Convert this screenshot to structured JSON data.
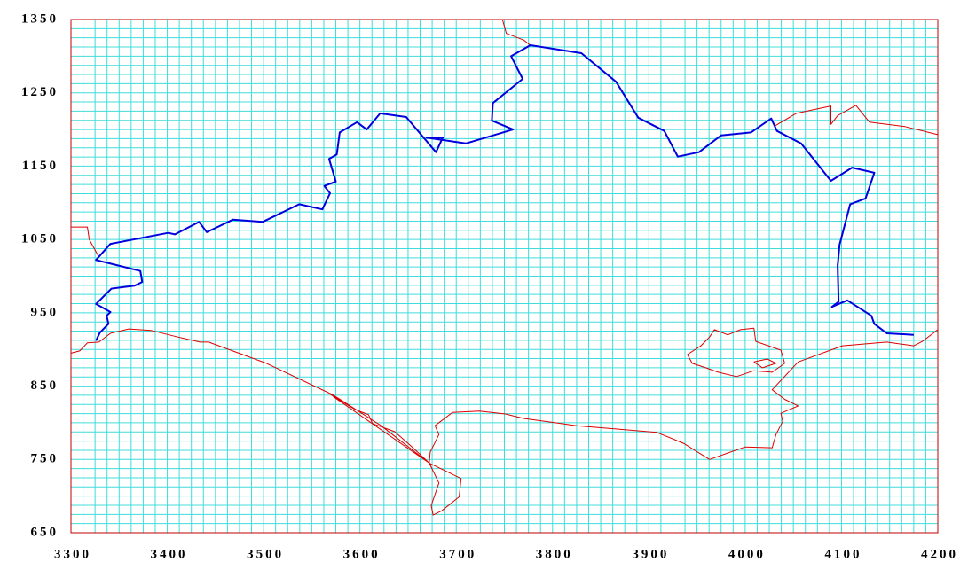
{
  "chart_data": {
    "type": "line",
    "xlim": [
      3300,
      4200
    ],
    "ylim": [
      650,
      1350
    ],
    "xticks": [
      3300,
      3400,
      3500,
      3600,
      3700,
      3800,
      3900,
      4000,
      4100,
      4200
    ],
    "yticks": [
      650,
      750,
      850,
      950,
      1050,
      1150,
      1250,
      1350
    ],
    "grid": true,
    "minor_grid_per_tick": 8,
    "grid_color": "#40dcdc",
    "frame_color": "#c00000",
    "series": [
      {
        "color": "#0000dd",
        "width": 2,
        "x": [
          3326,
          3330,
          3339,
          3337,
          3341,
          3326,
          3342,
          3366,
          3374,
          3372,
          3326,
          3341,
          3401,
          3408,
          3433,
          3441,
          3468,
          3499,
          3537,
          3561,
          3569,
          3563,
          3575,
          3568,
          3576,
          3579,
          3597,
          3607,
          3621,
          3648,
          3679,
          3686,
          3669,
          3710,
          3759,
          3737,
          3738,
          3769,
          3757,
          3777,
          3830,
          3866,
          3889,
          3916,
          3930,
          3952,
          3975,
          4006,
          4027,
          4033,
          4058,
          4089,
          4111,
          4134,
          4125,
          4109,
          4098,
          4096,
          4097,
          4090,
          4106,
          4131,
          4134,
          4147,
          4175
        ],
        "values": [
          912,
          923,
          935,
          946,
          951,
          962,
          983,
          987,
          992,
          1007,
          1022,
          1044,
          1059,
          1057,
          1074,
          1060,
          1077,
          1074,
          1098,
          1091,
          1113,
          1123,
          1129,
          1160,
          1166,
          1196,
          1210,
          1200,
          1222,
          1217,
          1169,
          1189,
          1189,
          1181,
          1200,
          1212,
          1236,
          1269,
          1300,
          1315,
          1304,
          1265,
          1216,
          1198,
          1163,
          1169,
          1192,
          1196,
          1215,
          1198,
          1181,
          1130,
          1148,
          1141,
          1106,
          1098,
          1043,
          1014,
          965,
          958,
          967,
          946,
          935,
          922,
          920
        ]
      },
      {
        "color": "#dd0000",
        "width": 1,
        "x": [
          3300,
          3317,
          3319,
          3329,
          null,
          3748,
          3752,
          3770,
          3777,
          null,
          4031,
          4053,
          4089,
          4089,
          4096,
          4115,
          4129,
          4166,
          4200,
          null,
          3300,
          3309,
          3317,
          3329,
          3341,
          3360,
          3383,
          3411,
          3434,
          3443,
          3503,
          3572,
          3622,
          3672,
          3705,
          3703,
          3685,
          3676,
          3674,
          3682,
          3672,
          3673,
          3682,
          3678,
          3696,
          3724,
          3751,
          3770,
          3825,
          3871,
          3908,
          3936,
          3963,
          4000,
          4028,
          4032,
          4039,
          4037,
          4055,
          4041,
          4028,
          4055,
          4101,
          4147,
          4175,
          4184,
          4200,
          null,
          3569,
          3595,
          3609,
          3613,
          3636,
          3650,
          3664,
          3672,
          null,
          3572,
          3672,
          null,
          3963,
          3968,
          3982,
          3995,
          4009,
          4011,
          4037,
          4041,
          4028,
          4009,
          3991,
          3972,
          3959,
          3945,
          3940,
          3954,
          3963,
          null,
          4009,
          4023,
          4032,
          4018,
          4009
        ],
        "values": [
          1067,
          1067,
          1050,
          1026,
          null,
          1350,
          1331,
          1322,
          1315,
          null,
          1205,
          1222,
          1232,
          1207,
          1219,
          1233,
          1210,
          1204,
          1193,
          null,
          895,
          898,
          909,
          910,
          922,
          928,
          926,
          917,
          910,
          910,
          881,
          838,
          796,
          745,
          724,
          699,
          680,
          674,
          687,
          718,
          745,
          760,
          784,
          796,
          814,
          816,
          812,
          806,
          796,
          791,
          787,
          772,
          750,
          767,
          766,
          784,
          802,
          813,
          823,
          832,
          845,
          883,
          905,
          910,
          905,
          911,
          927,
          null,
          839,
          818,
          811,
          799,
          788,
          772,
          755,
          745,
          null,
          836,
          745,
          null,
          917,
          927,
          920,
          927,
          929,
          911,
          899,
          881,
          869,
          871,
          863,
          869,
          875,
          881,
          893,
          905,
          917,
          null,
          883,
          887,
          881,
          875,
          883
        ]
      }
    ]
  }
}
